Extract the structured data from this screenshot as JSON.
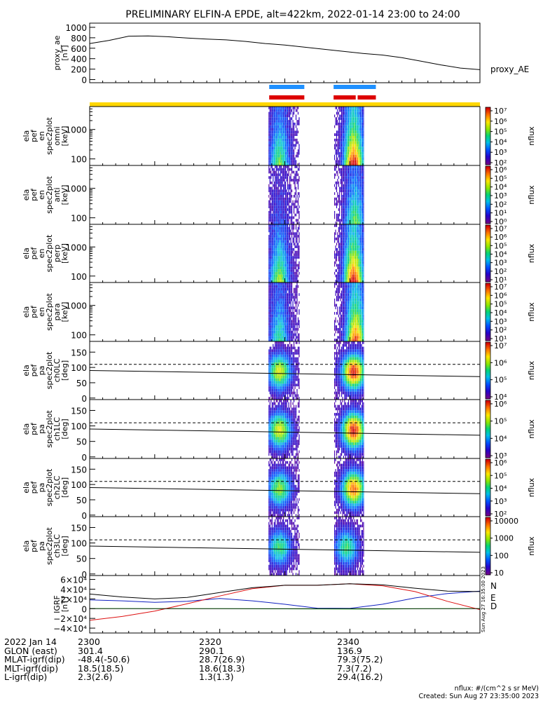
{
  "title": "PRELIMINARY ELFIN-A EPDE, alt=422km, 2022-01-14 23:00 to 24:00",
  "colors": {
    "frame": "#000000",
    "orbit_bar": "#FFD700",
    "sci_zone_blue": "#1E90FF",
    "sci_zone_red": "#DD0000",
    "igrf_n": "#1020C0",
    "igrf_e": "#00AA00",
    "igrf_d": "#DD1010",
    "igrf_total": "#000000"
  },
  "colorbar_units": "nflux",
  "footer_units": "nflux: #/(cm^2 s sr MeV)",
  "created": "Created: Sun Aug 27 23:35:00 2023",
  "side_stamp": "Sun Aug 27 16:35:00 2023",
  "ephemeris": {
    "rows": [
      {
        "label": "2022 Jan 14",
        "values": [
          "2300",
          "2320",
          "2340"
        ]
      },
      {
        "label": "GLON (east)",
        "values": [
          "301.4",
          "290.1",
          "136.9"
        ]
      },
      {
        "label": "MLAT-igrf(dip)",
        "values": [
          "-48.4(-50.6)",
          "28.7(26.9)",
          "79.3(75.2)"
        ]
      },
      {
        "label": "MLT-igrf(dip)",
        "values": [
          "18.5(18.5)",
          "18.6(18.3)",
          "7.3(7.2)"
        ]
      },
      {
        "label": "L-igrf(dip)",
        "values": [
          "2.3(2.6)",
          "1.3(1.3)",
          "29.4(16.2)"
        ]
      }
    ]
  },
  "chart_data": [
    {
      "type": "line",
      "panel": "proxy_ae",
      "ylabel": [
        "proxy_ae",
        "[nT]"
      ],
      "legend": "proxy_AE",
      "yticks": [
        "1000",
        "800",
        "600",
        "400",
        "200",
        "0"
      ],
      "ylim": [
        -60,
        1080
      ],
      "x_minutes": [
        0,
        3,
        6,
        9,
        12,
        15,
        18,
        21,
        24,
        27,
        30,
        33,
        36,
        39,
        42,
        45,
        48,
        51,
        54,
        57,
        60
      ],
      "values": [
        690,
        750,
        830,
        835,
        820,
        795,
        775,
        760,
        730,
        690,
        660,
        620,
        580,
        540,
        500,
        470,
        420,
        350,
        280,
        220,
        190
      ]
    },
    {
      "type": "heatmap",
      "panel": "omni",
      "ylabel": [
        "ela",
        "pef",
        "en",
        "spec2plot",
        "omni",
        "[keV]"
      ],
      "ylog": true,
      "yticks": [
        "1000",
        "100"
      ],
      "ylim": [
        60,
        6000
      ],
      "cbar_ticks": [
        "10⁷",
        "10⁶",
        "10⁵",
        "10⁴",
        "10³",
        "10²"
      ],
      "cbar_range": [
        100,
        10000000
      ],
      "passes": [
        {
          "start_min": 27.5,
          "end_min": 32.3,
          "peak_min": 29.2,
          "intensity": 0.55
        },
        {
          "start_min": 37.6,
          "end_min": 42.2,
          "peak_min": 40.6,
          "intensity": 1.0
        }
      ]
    },
    {
      "type": "heatmap",
      "panel": "anti",
      "ylabel": [
        "ela",
        "pef",
        "en",
        "spec2plot",
        "anti",
        "[keV]"
      ],
      "ylog": true,
      "yticks": [
        "1000",
        "100"
      ],
      "ylim": [
        60,
        6000
      ],
      "cbar_ticks": [
        "10⁶",
        "10⁵",
        "10⁴",
        "10³",
        "10²",
        "10¹",
        "10⁰"
      ],
      "cbar_range": [
        1,
        1000000
      ],
      "passes": [
        {
          "start_min": 27.5,
          "end_min": 32.3,
          "peak_min": 29.2,
          "intensity": 0.15
        },
        {
          "start_min": 37.6,
          "end_min": 42.2,
          "peak_min": 40.8,
          "intensity": 0.55
        }
      ]
    },
    {
      "type": "heatmap",
      "panel": "perp",
      "ylabel": [
        "ela",
        "pef",
        "en",
        "spec2plot",
        "perp",
        "[keV]"
      ],
      "ylog": true,
      "yticks": [
        "1000",
        "100"
      ],
      "ylim": [
        60,
        6000
      ],
      "cbar_ticks": [
        "10⁷",
        "10⁶",
        "10⁵",
        "10⁴",
        "10³",
        "10²",
        "10¹"
      ],
      "cbar_range": [
        10,
        10000000
      ],
      "passes": [
        {
          "start_min": 27.5,
          "end_min": 32.3,
          "peak_min": 29.2,
          "intensity": 0.6
        },
        {
          "start_min": 37.6,
          "end_min": 42.2,
          "peak_min": 40.6,
          "intensity": 1.0
        }
      ]
    },
    {
      "type": "heatmap",
      "panel": "para",
      "ylabel": [
        "ela",
        "pef",
        "en",
        "spec2plot",
        "para",
        "[keV]"
      ],
      "ylog": true,
      "yticks": [
        "1000",
        "100"
      ],
      "ylim": [
        60,
        6000
      ],
      "cbar_ticks": [
        "10⁷",
        "10⁶",
        "10⁵",
        "10⁴",
        "10³",
        "10²",
        "10¹"
      ],
      "cbar_range": [
        10,
        10000000
      ],
      "passes": [
        {
          "start_min": 27.5,
          "end_min": 32.3,
          "peak_min": 29.2,
          "intensity": 0.45
        },
        {
          "start_min": 37.6,
          "end_min": 42.2,
          "peak_min": 40.9,
          "intensity": 0.9
        }
      ]
    },
    {
      "type": "heatmap",
      "panel": "ch0LC",
      "ylabel": [
        "ela",
        "pef",
        "pa",
        "spec2plot",
        "ch0LC",
        "[deg]"
      ],
      "yticks": [
        "150",
        "100",
        "50",
        "0"
      ],
      "ylim": [
        -5,
        185
      ],
      "cbar_ticks": [
        "10⁷",
        "10⁶",
        "10⁵",
        "10⁴"
      ],
      "cbar_range": [
        1000,
        10000000
      ],
      "passes": [
        {
          "start_min": 27.5,
          "end_min": 32.3,
          "peak_min": 29.2,
          "intensity": 0.7
        },
        {
          "start_min": 37.6,
          "end_min": 42.2,
          "peak_min": 40.6,
          "intensity": 1.0
        }
      ],
      "solid_line": [
        90,
        70
      ],
      "dashed_line": [
        110,
        110
      ]
    },
    {
      "type": "heatmap",
      "panel": "ch1LC",
      "ylabel": [
        "ela",
        "pef",
        "pa",
        "spec2plot",
        "ch1LC",
        "[deg]"
      ],
      "yticks": [
        "150",
        "100",
        "50",
        "0"
      ],
      "ylim": [
        -5,
        185
      ],
      "cbar_ticks": [
        "10⁶",
        "10⁵",
        "10⁴",
        "10³"
      ],
      "cbar_range": [
        1000,
        1000000
      ],
      "passes": [
        {
          "start_min": 27.5,
          "end_min": 32.3,
          "peak_min": 29.2,
          "intensity": 0.7
        },
        {
          "start_min": 37.6,
          "end_min": 42.2,
          "peak_min": 40.6,
          "intensity": 1.0
        }
      ],
      "solid_line": [
        90,
        70
      ],
      "dashed_line": [
        110,
        110
      ]
    },
    {
      "type": "heatmap",
      "panel": "ch2LC",
      "ylabel": [
        "ela",
        "pef",
        "pa",
        "spec2plot",
        "ch2LC",
        "[deg]"
      ],
      "yticks": [
        "150",
        "100",
        "50",
        "0"
      ],
      "ylim": [
        -5,
        185
      ],
      "cbar_ticks": [
        "10⁶",
        "10⁵",
        "10⁴",
        "10³",
        "10²"
      ],
      "cbar_range": [
        100,
        1000000
      ],
      "passes": [
        {
          "start_min": 27.5,
          "end_min": 32.3,
          "peak_min": 29.2,
          "intensity": 0.6
        },
        {
          "start_min": 37.6,
          "end_min": 42.2,
          "peak_min": 40.6,
          "intensity": 0.9
        }
      ],
      "solid_line": [
        90,
        70
      ],
      "dashed_line": [
        110,
        110
      ]
    },
    {
      "type": "heatmap",
      "panel": "ch3LC",
      "ylabel": [
        "ela",
        "pef",
        "pa",
        "spec2plot",
        "ch3LC",
        "[deg]"
      ],
      "yticks": [
        "150",
        "100",
        "50",
        "0"
      ],
      "ylim": [
        -5,
        185
      ],
      "cbar_ticks": [
        "10000",
        "1000",
        "100",
        "10"
      ],
      "cbar_range": [
        10,
        10000
      ],
      "passes": [
        {
          "start_min": 27.5,
          "end_min": 32.3,
          "peak_min": 29.2,
          "intensity": 0.5
        },
        {
          "start_min": 37.6,
          "end_min": 42.2,
          "peak_min": 39.5,
          "intensity": 0.5
        }
      ],
      "solid_line": [
        90,
        70
      ],
      "dashed_line": [
        110,
        110
      ]
    },
    {
      "type": "line",
      "panel": "igrf",
      "ylabel": [
        "IGRF",
        "[nT]"
      ],
      "yticks": [
        "6×10⁴",
        "4×10⁴",
        "2×10⁴",
        "0",
        "−2×10⁴",
        "−4×10⁴"
      ],
      "ylim": [
        -50000,
        68000
      ],
      "x_minutes": [
        0,
        5,
        10,
        15,
        20,
        25,
        30,
        35,
        40,
        45,
        50,
        55,
        60
      ],
      "series": [
        {
          "name": "N",
          "values": [
            18000,
            16000,
            13000,
            15000,
            21000,
            16000,
            9000,
            1000,
            500,
            9000,
            22000,
            31000,
            36000
          ]
        },
        {
          "name": "E",
          "values": [
            200,
            150,
            100,
            0,
            -100,
            -200,
            -300,
            -500,
            -800,
            -600,
            -200,
            0,
            200
          ]
        },
        {
          "name": "D",
          "values": [
            -24000,
            -16000,
            -5000,
            10000,
            26000,
            41000,
            48000,
            48000,
            51000,
            47000,
            35000,
            15000,
            -2000
          ]
        },
        {
          "name": "total",
          "values": [
            30000,
            24000,
            20000,
            23000,
            33000,
            43000,
            48000,
            48000,
            51000,
            49000,
            42000,
            36000,
            35000
          ]
        }
      ],
      "legend": [
        "N",
        "E",
        "D"
      ]
    }
  ]
}
